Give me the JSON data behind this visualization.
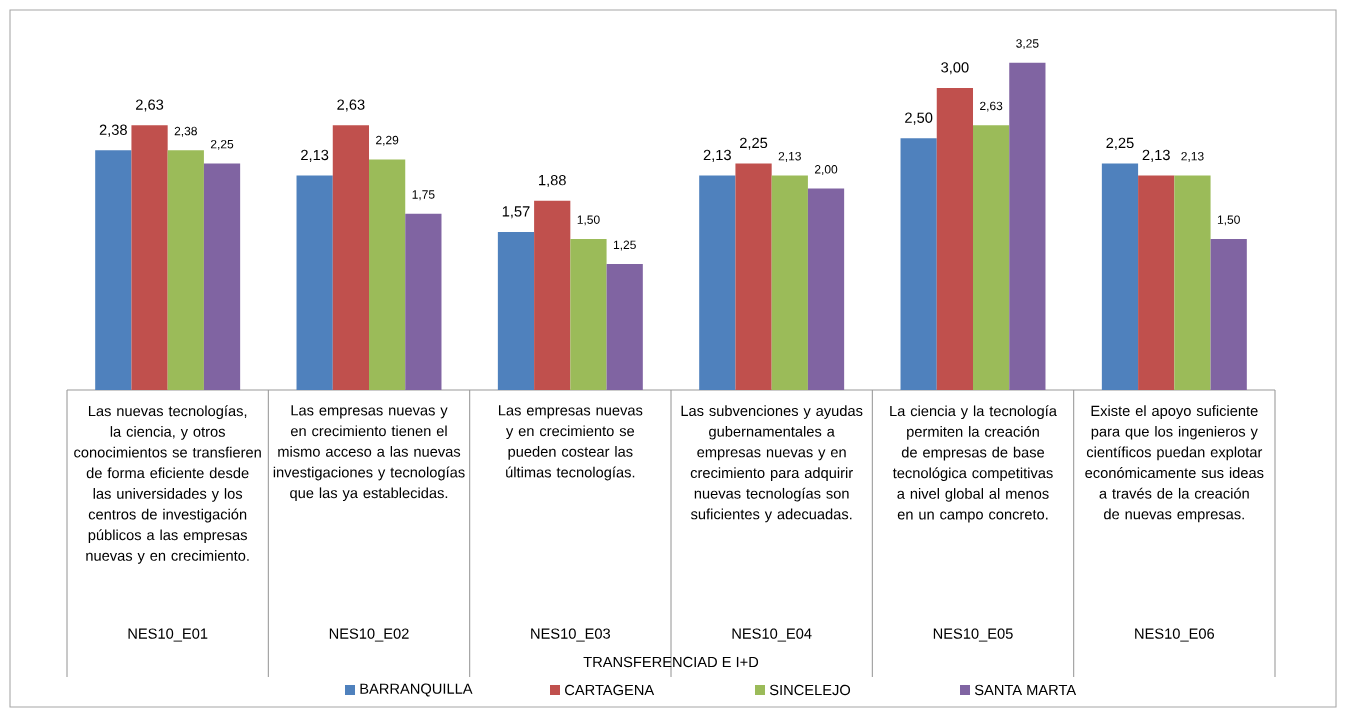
{
  "chart_data": {
    "type": "bar",
    "categories": [
      "Las nuevas tecnologías, la ciencia, y otros conocimientos se transfieren de forma eficiente desde las universidades y los centros de investigación públicos a las empresas nuevas y en crecimiento.",
      "Las empresas nuevas y en crecimiento tienen el mismo acceso a las nuevas investigaciones y tecnologías que las ya establecidas.",
      "Las empresas nuevas y en crecimiento se pueden costear las últimas tecnologías.",
      "Las subvenciones y ayudas gubernamentales a empresas nuevas y en crecimiento para adquirir nuevas tecnologías son suficientes y adecuadas.",
      "La ciencia y la tecnología permiten la creación de empresas de base tecnológica competitivas a nivel global al menos en un  campo concreto.",
      "Existe el apoyo suficiente para que los ingenieros y científicos puedan explotar económicamente sus ideas a través de la creación de nuevas empresas."
    ],
    "annotations": [
      "NES10_E01",
      "NES10_E02",
      "NES10_E03",
      "NES10_E04",
      "NES10_E05",
      "NES10_E06",
      "TRANSFERENCIAD E I+D"
    ],
    "series": [
      {
        "name": "BARRANQUILLA",
        "color": "#4f81bd",
        "values": [
          2.38,
          2.13,
          1.57,
          2.13,
          2.5,
          2.25
        ],
        "value_labels": [
          "2,38",
          "2,13",
          "1,57",
          "2,13",
          "2,50",
          "2,25"
        ]
      },
      {
        "name": "CARTAGENA",
        "color": "#c0504d",
        "values": [
          2.63,
          2.63,
          1.88,
          2.25,
          3.0,
          2.13
        ],
        "value_labels": [
          "2,63",
          "2,63",
          "1,88",
          "2,25",
          "3,00",
          "2,13"
        ]
      },
      {
        "name": "SINCELEJO",
        "color": "#9bbb59",
        "values": [
          2.38,
          2.29,
          1.5,
          2.13,
          2.63,
          2.13
        ],
        "value_labels": [
          "2,38",
          "2,29",
          "1,50",
          "2,13",
          "2,63",
          "2,13"
        ]
      },
      {
        "name": "SANTA MARTA",
        "color": "#8064a2",
        "values": [
          2.25,
          1.75,
          1.25,
          2.0,
          3.25,
          1.5
        ],
        "value_labels": [
          "2,25",
          "1,75",
          "1,25",
          "2,00",
          "3,25",
          "1,50"
        ]
      }
    ],
    "legend": "bottom"
  }
}
